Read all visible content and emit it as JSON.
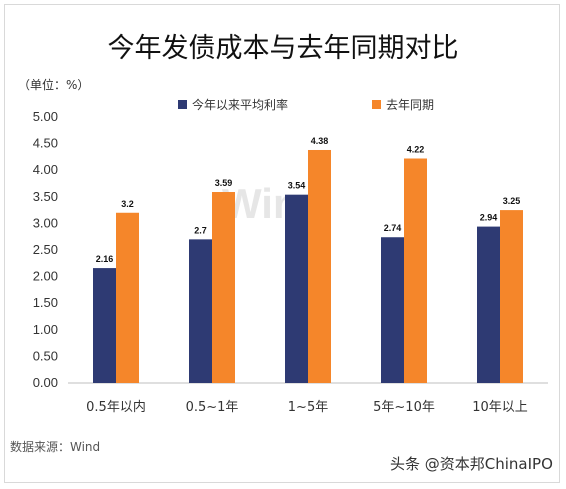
{
  "watermark_bg": "Wind",
  "footer": {
    "unit": "（单位：%）",
    "source": "数据来源：Wind",
    "attribution": "头条 @资本邦ChinaIPO"
  },
  "chart_data": {
    "type": "bar",
    "title": "今年发债成本与去年同期对比",
    "categories": [
      "0.5年以内",
      "0.5~1年",
      "1~5年",
      "5年~10年",
      "10年以上"
    ],
    "series": [
      {
        "name": "今年以来平均利率",
        "values": [
          2.16,
          2.7,
          3.54,
          2.74,
          2.94
        ],
        "labels": [
          "2.16",
          "2.7",
          "3.54",
          "2.74",
          "2.94"
        ],
        "color": "#2e3a73"
      },
      {
        "name": "去年同期",
        "values": [
          3.2,
          3.59,
          4.38,
          4.22,
          3.25
        ],
        "labels": [
          "3.2",
          "3.59",
          "4.38",
          "4.22",
          "3.25"
        ],
        "color": "#f5862a"
      }
    ],
    "ylim": [
      0,
      5
    ],
    "yticks": [
      "0.00",
      "0.50",
      "1.00",
      "1.50",
      "2.00",
      "2.50",
      "3.00",
      "3.50",
      "4.00",
      "4.50",
      "5.00"
    ],
    "legend": "top",
    "grid": false
  }
}
